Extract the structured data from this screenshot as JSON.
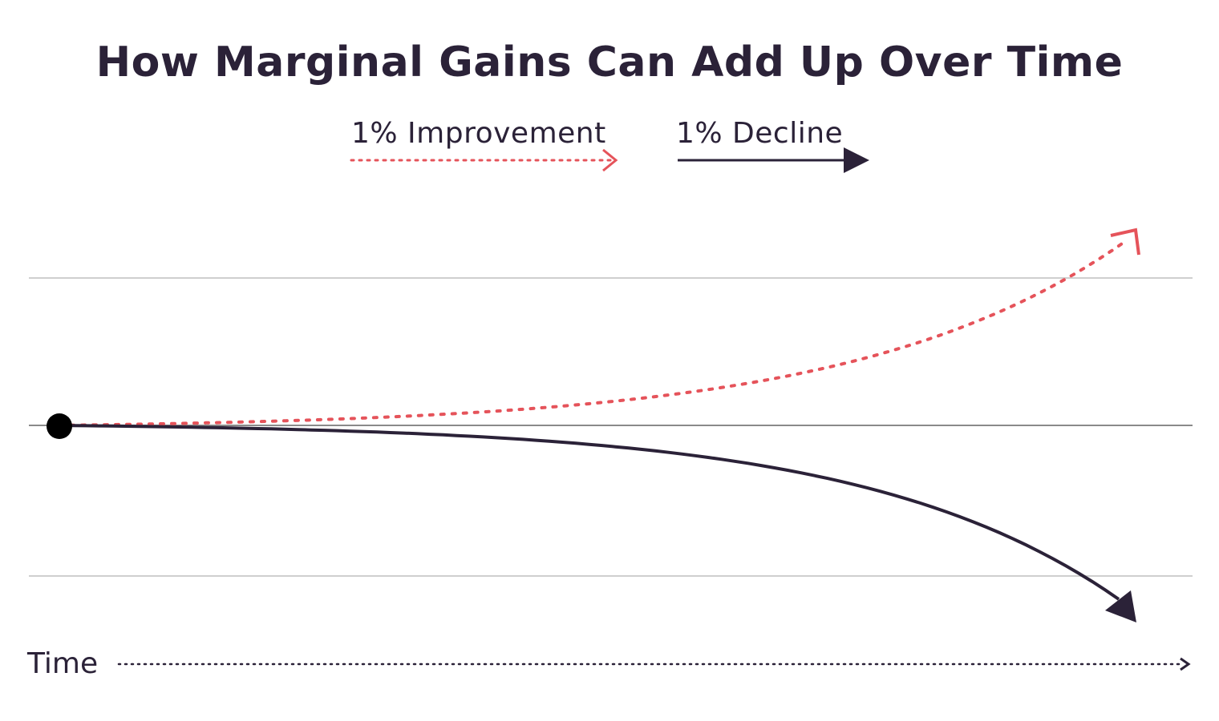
{
  "chart_data": {
    "type": "line",
    "title": "How Marginal Gains Can Add Up Over Time",
    "xlabel": "Time",
    "ylabel": "",
    "series": [
      {
        "name": "1% Improvement",
        "color": "#e5535a",
        "style": "dotted-arrow",
        "growth_rate": 0.01
      },
      {
        "name": "1% Decline",
        "color": "#2b2238",
        "style": "solid-arrow",
        "growth_rate": -0.01
      }
    ],
    "baseline": 1,
    "gridlines": 3,
    "legend_position": "top-center"
  }
}
